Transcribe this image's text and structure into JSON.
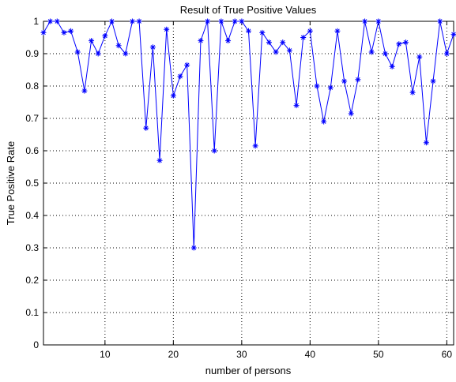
{
  "chart_data": {
    "type": "line",
    "title": "Result of True Positive Values",
    "xlabel": "number of persons",
    "ylabel": "True Positive Rate",
    "xlim": [
      1,
      61
    ],
    "ylim": [
      0,
      1
    ],
    "xticks": [
      10,
      20,
      30,
      40,
      50,
      60
    ],
    "yticks": [
      0,
      0.1,
      0.2,
      0.3,
      0.4,
      0.5,
      0.6,
      0.7,
      0.8,
      0.9,
      1
    ],
    "xtick_labels": [
      "10",
      "20",
      "30",
      "40",
      "50",
      "60"
    ],
    "ytick_labels": [
      "0",
      "0.1",
      "0.2",
      "0.3",
      "0.4",
      "0.5",
      "0.6",
      "0.7",
      "0.8",
      "0.9",
      "1"
    ],
    "grid": true,
    "line_color": "#0000ff",
    "marker": "asterisk",
    "series": [
      {
        "x": [
          1,
          2,
          3,
          4,
          5,
          6,
          7,
          8,
          9,
          10,
          11,
          12,
          13,
          14,
          15,
          16,
          17,
          18,
          19,
          20,
          21,
          22,
          23,
          24,
          25,
          26,
          27,
          28,
          29,
          30,
          31,
          32,
          33,
          34,
          35,
          36,
          37,
          38,
          39,
          40,
          41,
          42,
          43,
          44,
          45,
          46,
          47,
          48,
          49,
          50,
          51,
          52,
          53,
          54,
          55,
          56,
          57,
          58,
          59,
          60,
          61
        ],
        "values": [
          0.965,
          1.0,
          1.0,
          0.965,
          0.97,
          0.905,
          0.785,
          0.94,
          0.9,
          0.955,
          1.0,
          0.925,
          0.9,
          1.0,
          1.0,
          0.67,
          0.92,
          0.57,
          0.975,
          0.77,
          0.83,
          0.865,
          0.3,
          0.94,
          1.0,
          0.6,
          1.0,
          0.94,
          1.0,
          1.0,
          0.97,
          0.615,
          0.965,
          0.935,
          0.905,
          0.935,
          0.91,
          0.74,
          0.95,
          0.97,
          0.8,
          0.69,
          0.795,
          0.97,
          0.815,
          0.715,
          0.82,
          1.0,
          0.905,
          1.0,
          0.9,
          0.86,
          0.93,
          0.935,
          0.78,
          0.89,
          0.625,
          0.815,
          1.0,
          0.9,
          0.96
        ]
      }
    ]
  }
}
